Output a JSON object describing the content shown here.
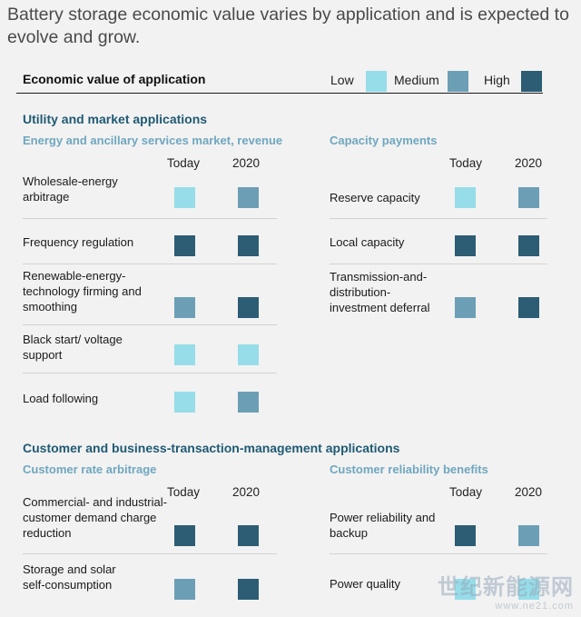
{
  "title": "Battery storage economic value varies by application and is expected to evolve and grow.",
  "legend": {
    "title": "Economic value of application",
    "items": [
      {
        "label": "Low",
        "level": "low",
        "color": "#96dde9"
      },
      {
        "label": "Medium",
        "level": "medium",
        "color": "#6c9fb5"
      },
      {
        "label": "High",
        "level": "high",
        "color": "#2c5d74"
      }
    ]
  },
  "columns": {
    "today": "Today",
    "future": "2020"
  },
  "sections": [
    {
      "heading": "Utility and market applications",
      "groups": [
        {
          "subheading": "Energy and ancillary services market, revenue",
          "rows": [
            {
              "label": "Wholesale-energy arbitrage",
              "today": "low",
              "future": "medium"
            },
            {
              "label": "Frequency regulation",
              "today": "high",
              "future": "high"
            },
            {
              "label": "Renewable-energy-technology firming and smoothing",
              "today": "medium",
              "future": "high"
            },
            {
              "label": "Black start/ voltage support",
              "today": "low",
              "future": "low"
            },
            {
              "label": "Load following",
              "today": "low",
              "future": "medium"
            }
          ]
        },
        {
          "subheading": "Capacity payments",
          "rows": [
            {
              "label": "Reserve capacity",
              "today": "low",
              "future": "medium"
            },
            {
              "label": "Local capacity",
              "today": "high",
              "future": "high"
            },
            {
              "label": "Transmission-and-distribution-investment deferral",
              "today": "medium",
              "future": "high"
            }
          ]
        }
      ]
    },
    {
      "heading": "Customer and business-transaction-management applications",
      "groups": [
        {
          "subheading": "Customer rate arbitrage",
          "rows": [
            {
              "label": "Commercial- and industrial-customer demand charge reduction",
              "today": "high",
              "future": "high"
            },
            {
              "label": "Storage and solar self-consumption",
              "today": "medium",
              "future": "high"
            }
          ]
        },
        {
          "subheading": "Customer reliability benefits",
          "rows": [
            {
              "label": "Power reliability and backup",
              "today": "high",
              "future": "medium"
            },
            {
              "label": "Power quality",
              "today": "low",
              "future": "low"
            }
          ]
        }
      ]
    }
  ],
  "watermark": {
    "line1": "世纪新能源网",
    "line2": "www.ne21.com"
  }
}
